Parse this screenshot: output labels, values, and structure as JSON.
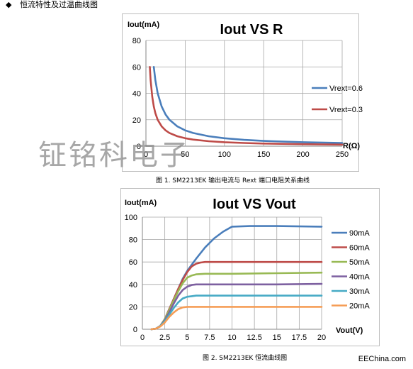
{
  "heading": {
    "bullet": "◆",
    "text": "恒流特性及过温曲线图"
  },
  "watermark": "钲铭科电子",
  "source": "EEChina.com",
  "captions": [
    "图 1. SM2213EK  输出电流与 Rext 端口电阻关系曲线",
    "图 2. SM2213EK  恒流曲线图"
  ],
  "chart_data": [
    {
      "type": "line",
      "title": "Iout VS R",
      "ylabel": "Iout(mA)",
      "xlabel": "R(Ω)",
      "xlim": [
        0,
        250
      ],
      "ylim": [
        0,
        80
      ],
      "xticks": [
        0,
        50,
        100,
        150,
        200,
        250
      ],
      "yticks": [
        0,
        20,
        40,
        60,
        80
      ],
      "grid": true,
      "legend_position": "right",
      "series": [
        {
          "name": "Vrext=0.6",
          "color": "#4a7ebb",
          "x": [
            10,
            12,
            15,
            20,
            25,
            30,
            40,
            50,
            60,
            80,
            100,
            125,
            150,
            200,
            250
          ],
          "y": [
            60,
            50,
            40,
            30,
            24,
            20,
            15,
            12,
            10,
            7.5,
            6,
            4.8,
            4,
            3,
            2.4
          ]
        },
        {
          "name": "Vrext=0.3",
          "color": "#be4b48",
          "x": [
            5,
            6,
            8,
            10,
            12,
            15,
            20,
            25,
            30,
            40,
            50,
            60,
            80,
            100,
            125,
            150,
            200,
            250
          ],
          "y": [
            60,
            50,
            37.5,
            30,
            25,
            20,
            15,
            12,
            10,
            7.5,
            6,
            5,
            3.75,
            3,
            2.4,
            2,
            1.5,
            1.2
          ]
        }
      ]
    },
    {
      "type": "line",
      "title": "Iout VS Vout",
      "ylabel": "Iout(mA)",
      "xlabel": "Vout(V)",
      "xlim": [
        0,
        20
      ],
      "ylim": [
        0,
        100
      ],
      "xticks": [
        "0",
        "2.5",
        "5",
        "7.5",
        "10",
        "12.5",
        "15",
        "17.5",
        "20"
      ],
      "yticks": [
        0,
        20,
        40,
        60,
        80,
        100
      ],
      "grid": true,
      "legend_position": "right",
      "series": [
        {
          "name": "90mA",
          "color": "#4a7ebb",
          "x": [
            1,
            1.5,
            2,
            2.5,
            3,
            3.5,
            4,
            4.5,
            5,
            6,
            7,
            8,
            9,
            10,
            12,
            15,
            20
          ],
          "y": [
            0,
            0.5,
            3,
            9,
            18,
            27,
            36,
            45,
            52,
            63,
            73,
            81,
            87,
            91.5,
            92,
            92,
            91.5
          ]
        },
        {
          "name": "60mA",
          "color": "#be4b48",
          "x": [
            1,
            1.5,
            2,
            2.5,
            3,
            3.5,
            4,
            4.5,
            5,
            5.5,
            6,
            6.5,
            7,
            10,
            15,
            20
          ],
          "y": [
            0,
            0.5,
            3,
            9,
            18,
            27,
            36,
            44,
            51,
            56,
            58.5,
            59.5,
            60,
            60,
            60,
            60
          ]
        },
        {
          "name": "50mA",
          "color": "#98b954",
          "x": [
            1,
            1.5,
            2,
            2.5,
            3,
            3.5,
            4,
            4.5,
            5,
            5.5,
            6,
            7,
            10,
            15,
            20
          ],
          "y": [
            0,
            0.5,
            3,
            9,
            17,
            26,
            34,
            41,
            46,
            48,
            49,
            49.5,
            49.5,
            50,
            50.5
          ]
        },
        {
          "name": "40mA",
          "color": "#7d60a0",
          "x": [
            1,
            1.5,
            2,
            2.5,
            3,
            3.5,
            4,
            4.5,
            5,
            5.5,
            6,
            10,
            15,
            20
          ],
          "y": [
            0,
            0.5,
            3,
            8,
            15,
            23,
            30,
            35,
            38,
            39.5,
            40,
            40,
            40,
            40.5
          ]
        },
        {
          "name": "30mA",
          "color": "#46aac5",
          "x": [
            1,
            1.5,
            2,
            2.5,
            3,
            3.5,
            4,
            4.5,
            5,
            5.5,
            6,
            10,
            15,
            20
          ],
          "y": [
            0,
            0.5,
            3,
            7,
            13,
            19,
            24,
            27.5,
            29,
            29.5,
            30,
            30,
            30,
            30
          ]
        },
        {
          "name": "20mA",
          "color": "#f59d56",
          "x": [
            1,
            1.5,
            2,
            2.5,
            3,
            3.5,
            4,
            4.5,
            5,
            10,
            15,
            20
          ],
          "y": [
            0,
            0.5,
            2.5,
            6,
            11,
            15,
            18,
            19.5,
            20,
            20,
            20,
            20
          ]
        }
      ]
    }
  ]
}
